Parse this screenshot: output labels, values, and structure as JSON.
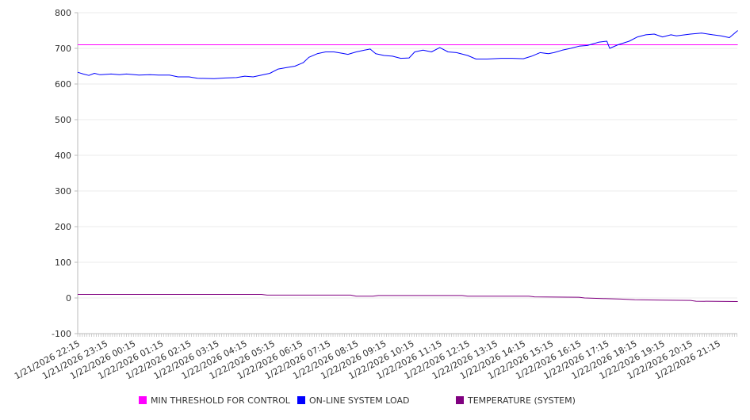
{
  "chart_data": {
    "type": "line",
    "title": "",
    "xlabel": "",
    "ylabel": "",
    "x_unit": "hours since 1/21/2026 22:15",
    "xlim": [
      0,
      23.7
    ],
    "ylim": [
      -100,
      800
    ],
    "yticks": [
      -100,
      0,
      100,
      200,
      300,
      400,
      500,
      600,
      700,
      800
    ],
    "xtick_labels": [
      "1/21/2026 22:15",
      "1/21/2026 23:15",
      "1/22/2026 00:15",
      "1/22/2026 01:15",
      "1/22/2026 02:15",
      "1/22/2026 03:15",
      "1/22/2026 04:15",
      "1/22/2026 05:15",
      "1/22/2026 06:15",
      "1/22/2026 07:15",
      "1/22/2026 08:15",
      "1/22/2026 09:15",
      "1/22/2026 10:15",
      "1/22/2026 11:15",
      "1/22/2026 12:15",
      "1/22/2026 13:15",
      "1/22/2026 14:15",
      "1/22/2026 15:15",
      "1/22/2026 16:15",
      "1/22/2026 17:15",
      "1/22/2026 18:15",
      "1/22/2026 19:15",
      "1/22/2026 20:15",
      "1/22/2026 21:15"
    ],
    "grid": true,
    "legend_position": "bottom",
    "series": [
      {
        "name": "MIN THRESHOLD FOR CONTROL",
        "color": "#ff00ff",
        "points": [
          [
            0,
            710
          ],
          [
            23.7,
            710
          ]
        ]
      },
      {
        "name": "ON-LINE SYSTEM LOAD",
        "color": "#0000ff",
        "points": [
          [
            0,
            633
          ],
          [
            0.2,
            628
          ],
          [
            0.4,
            624
          ],
          [
            0.6,
            630
          ],
          [
            0.8,
            626
          ],
          [
            1.2,
            628
          ],
          [
            1.5,
            626
          ],
          [
            1.75,
            628
          ],
          [
            2.2,
            625
          ],
          [
            2.6,
            626
          ],
          [
            2.9,
            625
          ],
          [
            3.3,
            625
          ],
          [
            3.6,
            620
          ],
          [
            4.0,
            620
          ],
          [
            4.3,
            616
          ],
          [
            4.9,
            615
          ],
          [
            5.3,
            617
          ],
          [
            5.7,
            618
          ],
          [
            6.0,
            622
          ],
          [
            6.3,
            620
          ],
          [
            6.6,
            625
          ],
          [
            6.9,
            630
          ],
          [
            7.2,
            642
          ],
          [
            7.5,
            646
          ],
          [
            7.8,
            650
          ],
          [
            8.1,
            660
          ],
          [
            8.3,
            675
          ],
          [
            8.6,
            685
          ],
          [
            8.9,
            690
          ],
          [
            9.2,
            690
          ],
          [
            9.5,
            686
          ],
          [
            9.7,
            683
          ],
          [
            10.0,
            690
          ],
          [
            10.3,
            695
          ],
          [
            10.5,
            698
          ],
          [
            10.7,
            685
          ],
          [
            11.0,
            680
          ],
          [
            11.3,
            678
          ],
          [
            11.6,
            672
          ],
          [
            11.9,
            673
          ],
          [
            12.1,
            690
          ],
          [
            12.4,
            695
          ],
          [
            12.7,
            690
          ],
          [
            13.0,
            702
          ],
          [
            13.3,
            690
          ],
          [
            13.6,
            688
          ],
          [
            14.0,
            680
          ],
          [
            14.3,
            670
          ],
          [
            14.7,
            670
          ],
          [
            15.2,
            672
          ],
          [
            15.6,
            672
          ],
          [
            16.0,
            671
          ],
          [
            16.3,
            678
          ],
          [
            16.6,
            688
          ],
          [
            16.9,
            685
          ],
          [
            17.1,
            688
          ],
          [
            17.4,
            695
          ],
          [
            17.7,
            700
          ],
          [
            18.0,
            706
          ],
          [
            18.3,
            708
          ],
          [
            18.7,
            717
          ],
          [
            19.0,
            720
          ],
          [
            19.1,
            700
          ],
          [
            19.4,
            710
          ],
          [
            19.8,
            720
          ],
          [
            20.1,
            732
          ],
          [
            20.4,
            738
          ],
          [
            20.7,
            740
          ],
          [
            21.0,
            732
          ],
          [
            21.3,
            738
          ],
          [
            21.5,
            735
          ],
          [
            22.0,
            740
          ],
          [
            22.4,
            743
          ],
          [
            22.8,
            738
          ],
          [
            23.1,
            735
          ],
          [
            23.4,
            730
          ],
          [
            23.7,
            750
          ]
        ]
      },
      {
        "name": "TEMPERATURE (SYSTEM)",
        "color": "#800080",
        "points": [
          [
            0,
            10
          ],
          [
            6.6,
            10
          ],
          [
            6.8,
            8
          ],
          [
            9.8,
            8
          ],
          [
            10.0,
            5
          ],
          [
            10.6,
            5
          ],
          [
            10.8,
            7
          ],
          [
            13.8,
            7
          ],
          [
            14.0,
            5
          ],
          [
            16.2,
            5
          ],
          [
            16.4,
            3
          ],
          [
            18.0,
            2
          ],
          [
            18.2,
            0
          ],
          [
            19.0,
            -2
          ],
          [
            19.5,
            -3
          ],
          [
            20.0,
            -5
          ],
          [
            21.0,
            -6
          ],
          [
            22.0,
            -7
          ],
          [
            22.2,
            -9
          ],
          [
            23.7,
            -10
          ]
        ]
      }
    ]
  }
}
